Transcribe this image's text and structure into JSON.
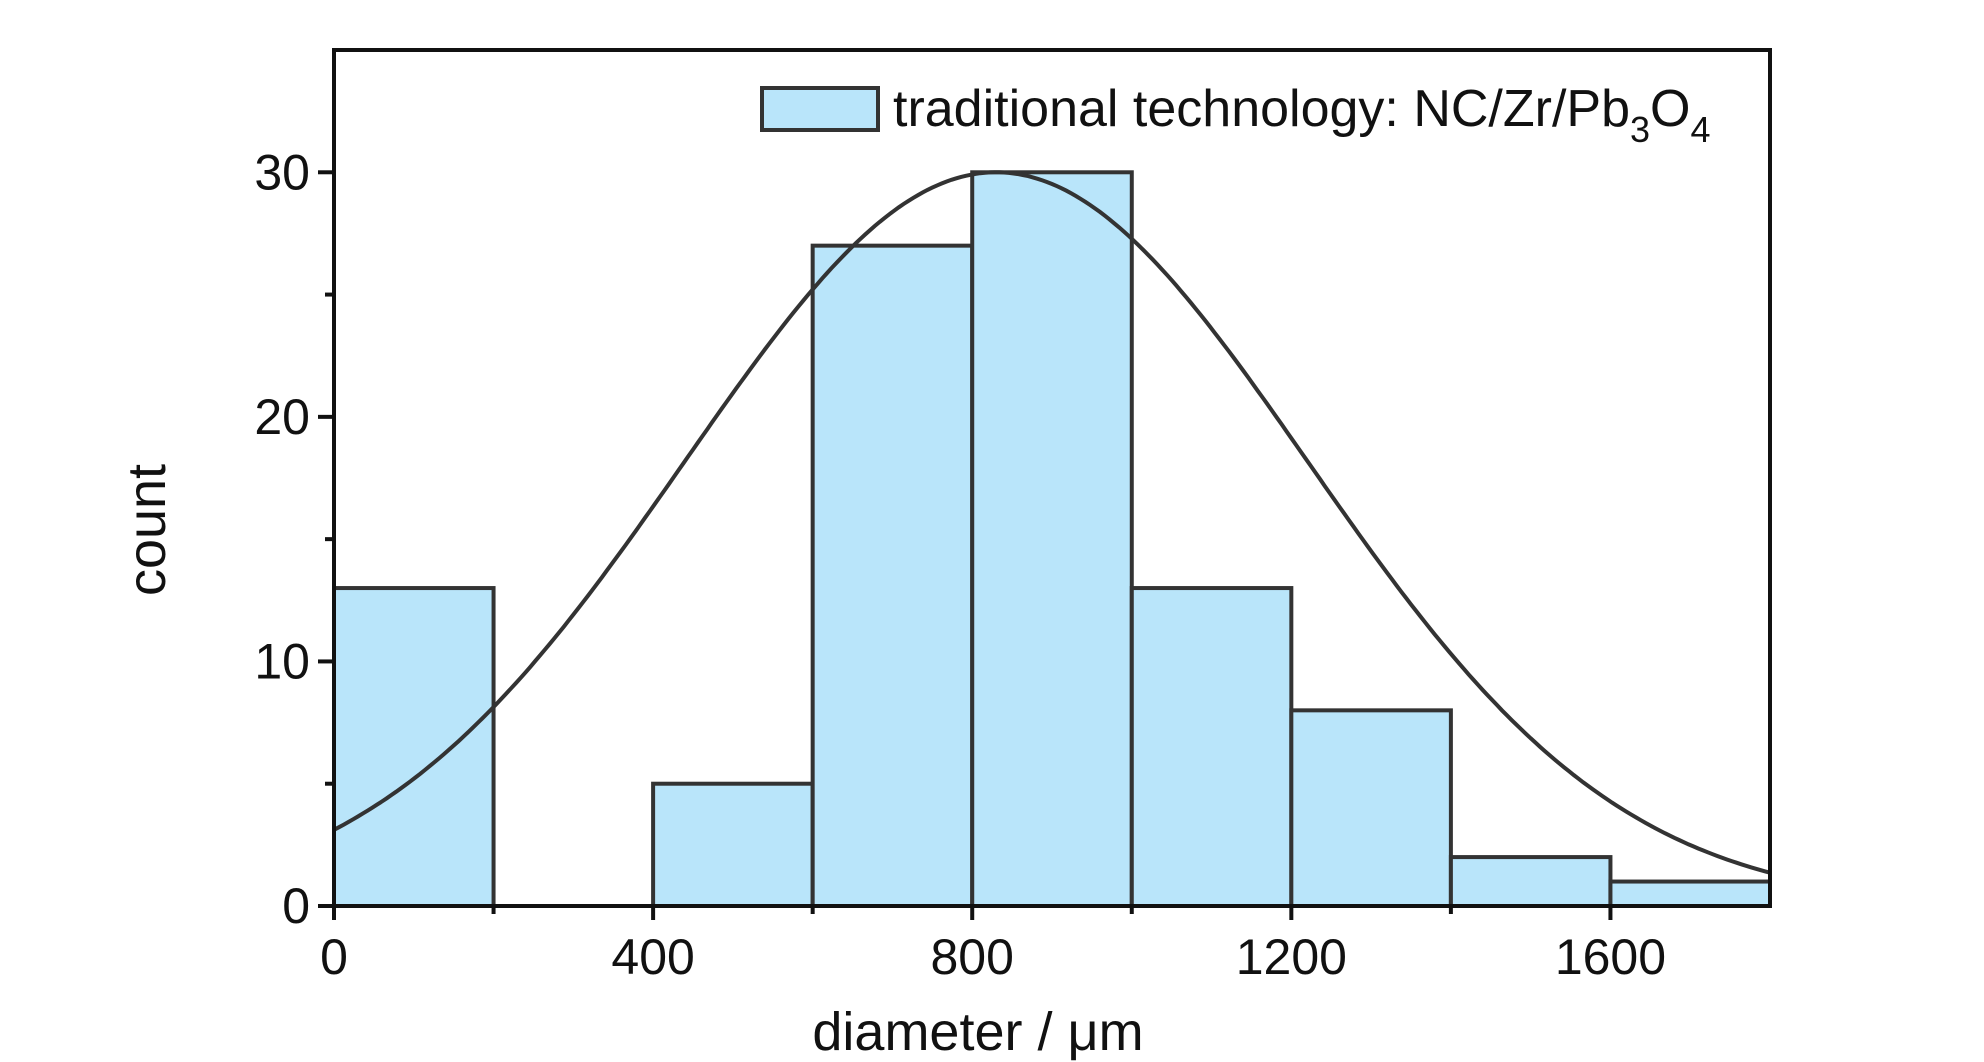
{
  "chart_data": {
    "type": "bar",
    "subtype": "histogram",
    "xlabel": "diameter / μm",
    "ylabel": "count",
    "xlim": [
      0,
      1800
    ],
    "ylim": [
      0,
      35
    ],
    "x_ticks": [
      0,
      400,
      800,
      1200,
      1600
    ],
    "y_ticks": [
      0,
      10,
      20,
      30
    ],
    "y_minor_ticks": [
      5,
      15,
      25
    ],
    "grid": false,
    "legend_position": "top-right",
    "series": [
      {
        "name": "traditional technology: NC/Zr/Pb3O4",
        "legend_parts": {
          "base": "traditional technology: NC/Zr/Pb",
          "sub1": "3",
          "mid": "O",
          "sub2": "4"
        },
        "color": "#b9e5fa",
        "edge_color": "#333333",
        "bins": [
          {
            "x0": 0,
            "x1": 200,
            "count": 13
          },
          {
            "x0": 200,
            "x1": 400,
            "count": 0
          },
          {
            "x0": 400,
            "x1": 600,
            "count": 5
          },
          {
            "x0": 600,
            "x1": 800,
            "count": 27
          },
          {
            "x0": 800,
            "x1": 1000,
            "count": 30
          },
          {
            "x0": 1000,
            "x1": 1200,
            "count": 13
          },
          {
            "x0": 1200,
            "x1": 1400,
            "count": 8
          },
          {
            "x0": 1400,
            "x1": 1600,
            "count": 2
          },
          {
            "x0": 1600,
            "x1": 1800,
            "count": 1
          }
        ]
      }
    ],
    "fit_curve": {
      "type": "gaussian",
      "mean": 830,
      "sigma": 390,
      "amplitude": 30,
      "color": "#333333"
    }
  }
}
